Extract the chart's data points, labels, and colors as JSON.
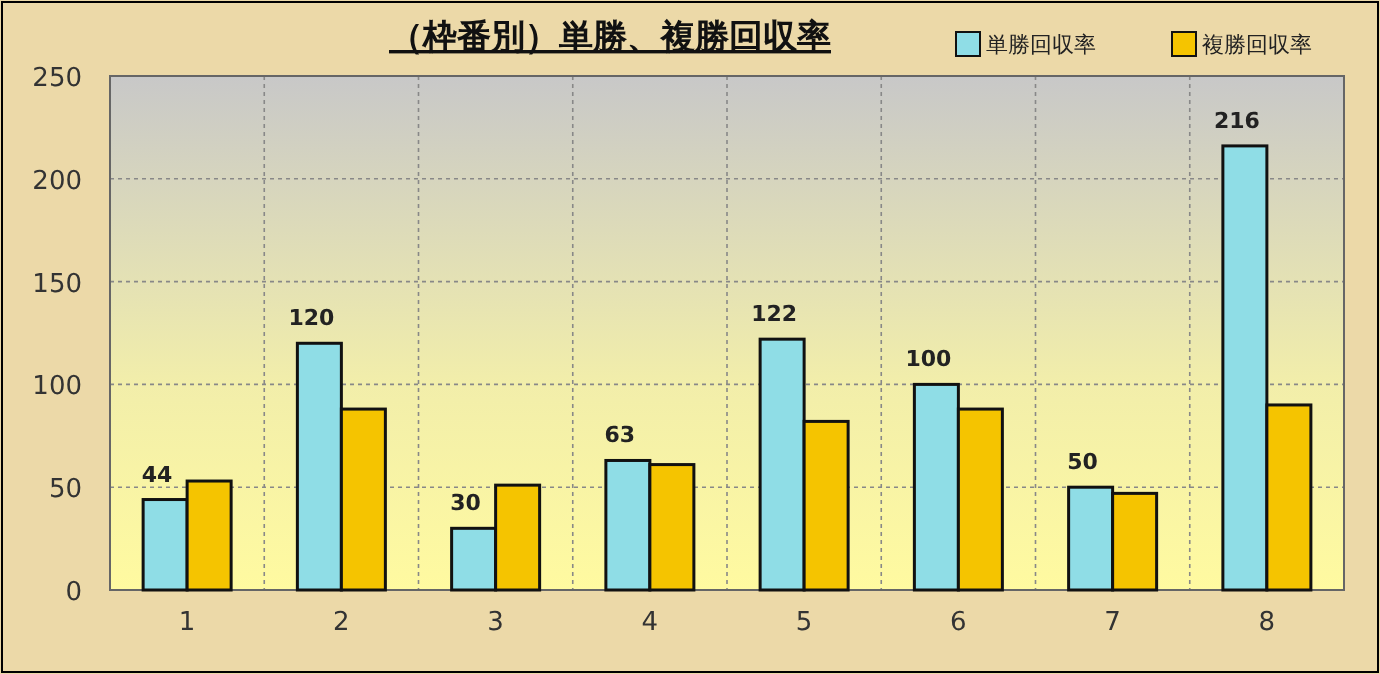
{
  "chart_data": {
    "type": "bar",
    "title": "（枠番別）単勝、複勝回収率",
    "categories": [
      "1",
      "2",
      "3",
      "4",
      "5",
      "6",
      "7",
      "8"
    ],
    "series": [
      {
        "name": "単勝回収率",
        "color": "#8fdde6",
        "values": [
          44,
          120,
          30,
          63,
          122,
          100,
          50,
          216
        ],
        "value_labels": [
          "44",
          "120",
          "30",
          "63",
          "122",
          "100",
          "50",
          "216"
        ]
      },
      {
        "name": "複勝回収率",
        "color": "#f5c400",
        "values": [
          53,
          88,
          51,
          61,
          82,
          88,
          47,
          90
        ]
      }
    ],
    "ylim": [
      0,
      250
    ],
    "yticks": [
      0,
      50,
      100,
      150,
      200,
      250
    ],
    "grid": true,
    "legend": "top right"
  }
}
